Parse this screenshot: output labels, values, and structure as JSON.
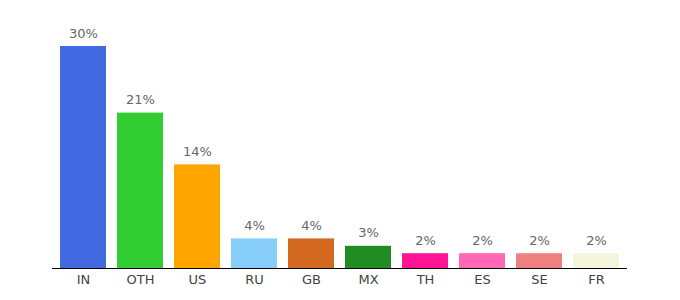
{
  "chart_data": {
    "type": "bar",
    "categories": [
      "IN",
      "OTH",
      "US",
      "RU",
      "GB",
      "MX",
      "TH",
      "ES",
      "SE",
      "FR"
    ],
    "values": [
      30,
      21,
      14,
      4,
      4,
      3,
      2,
      2,
      2,
      2
    ],
    "value_labels": [
      "30%",
      "21%",
      "14%",
      "4%",
      "4%",
      "3%",
      "2%",
      "2%",
      "2%",
      "2%"
    ],
    "colors": [
      "#4169e1",
      "#32cd32",
      "#ffa500",
      "#87cefa",
      "#d2691e",
      "#228b22",
      "#ff1493",
      "#ff69b4",
      "#f08080",
      "#f5f5dc"
    ],
    "ylim": [
      0,
      30
    ],
    "data_labels": true,
    "tick_labels": "x"
  }
}
